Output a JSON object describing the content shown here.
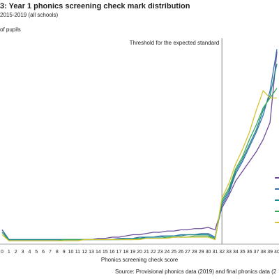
{
  "chart_data": {
    "type": "line",
    "title": "3: Year 1 phonics screening check mark distribution",
    "subtitle": "2015-2019 (all schools)",
    "y_label": "of pupils",
    "x_label": "Phonics screening check score",
    "source": "Source: Provisional phonics data (2019) and final phonics data (2",
    "annotations": [
      {
        "text": "Threshold for the expected standard",
        "x": "32"
      }
    ],
    "categories": [
      "0",
      "1",
      "2",
      "3",
      "4",
      "5",
      "6",
      "7",
      "8",
      "9",
      "10",
      "11",
      "12",
      "13",
      "14",
      "15",
      "16",
      "17",
      "18",
      "19",
      "20",
      "21",
      "22",
      "23",
      "24",
      "25",
      "26",
      "27",
      "28",
      "29",
      "30",
      "31",
      "32",
      "33",
      "34",
      "35",
      "36",
      "37",
      "38",
      "39",
      "40"
    ],
    "ylim": [
      0,
      8
    ],
    "series": [
      {
        "color": "#6b4c9a",
        "values": [
          0.5,
          0.1,
          0.1,
          0.1,
          0.1,
          0.1,
          0.1,
          0.1,
          0.1,
          0.1,
          0.1,
          0.1,
          0.1,
          0.1,
          0.15,
          0.15,
          0.2,
          0.2,
          0.25,
          0.3,
          0.3,
          0.35,
          0.4,
          0.4,
          0.45,
          0.45,
          0.5,
          0.5,
          0.55,
          0.55,
          0.6,
          0.5,
          1.4,
          1.9,
          2.5,
          2.9,
          3.3,
          3.7,
          4.2,
          4.9,
          7.8
        ]
      },
      {
        "color": "#3a6fb0",
        "values": [
          0.5,
          0.1,
          0.1,
          0.1,
          0.1,
          0.1,
          0.1,
          0.1,
          0.1,
          0.1,
          0.1,
          0.1,
          0.1,
          0.1,
          0.1,
          0.1,
          0.1,
          0.15,
          0.15,
          0.15,
          0.2,
          0.2,
          0.2,
          0.25,
          0.25,
          0.25,
          0.3,
          0.3,
          0.3,
          0.35,
          0.35,
          0.2,
          1.5,
          2.0,
          2.8,
          3.3,
          3.9,
          4.5,
          5.2,
          6.2,
          7.9
        ]
      },
      {
        "color": "#1f8a8a",
        "values": [
          0.4,
          0.1,
          0.1,
          0.1,
          0.1,
          0.1,
          0.1,
          0.1,
          0.1,
          0.1,
          0.1,
          0.1,
          0.1,
          0.1,
          0.1,
          0.1,
          0.1,
          0.1,
          0.15,
          0.15,
          0.15,
          0.2,
          0.2,
          0.2,
          0.25,
          0.25,
          0.25,
          0.3,
          0.3,
          0.3,
          0.3,
          0.15,
          1.6,
          2.1,
          2.9,
          3.4,
          4.0,
          4.6,
          5.4,
          6.0,
          7.3
        ]
      },
      {
        "color": "#3aa655",
        "values": [
          0.4,
          0.05,
          0.05,
          0.05,
          0.05,
          0.05,
          0.05,
          0.05,
          0.05,
          0.1,
          0.1,
          0.1,
          0.1,
          0.1,
          0.1,
          0.1,
          0.1,
          0.1,
          0.1,
          0.1,
          0.15,
          0.15,
          0.15,
          0.15,
          0.2,
          0.2,
          0.2,
          0.2,
          0.25,
          0.25,
          0.25,
          0.1,
          1.7,
          2.2,
          3.0,
          3.5,
          4.2,
          4.8,
          5.5,
          5.9,
          6.3
        ]
      },
      {
        "color": "#d4c431",
        "values": [
          0.3,
          0.05,
          0.05,
          0.05,
          0.05,
          0.05,
          0.05,
          0.05,
          0.05,
          0.05,
          0.05,
          0.05,
          0.1,
          0.1,
          0.1,
          0.1,
          0.1,
          0.1,
          0.1,
          0.1,
          0.1,
          0.15,
          0.15,
          0.15,
          0.15,
          0.2,
          0.2,
          0.2,
          0.2,
          0.2,
          0.2,
          0.1,
          1.8,
          2.4,
          3.2,
          3.8,
          4.5,
          5.4,
          6.2,
          5.9,
          5.9
        ]
      }
    ]
  }
}
